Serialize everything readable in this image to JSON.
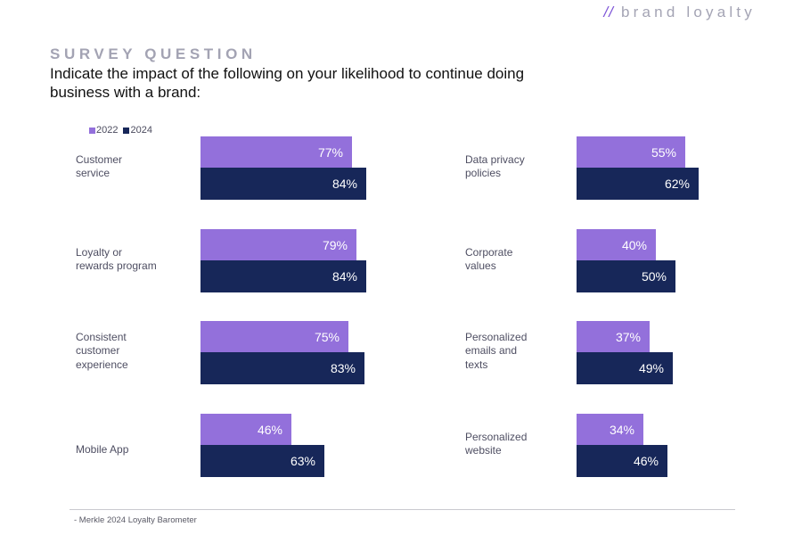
{
  "header": {
    "brand_slash": "//",
    "brand_text": "brand loyalty"
  },
  "kicker": "SURVEY QUESTION",
  "question": "Indicate the impact of the following on your likelihood to continue doing business with a brand:",
  "footer": {
    "source": "- Merkle 2024 Loyalty Barometer"
  },
  "colors": {
    "y2022": "#9370db",
    "y2024": "#172759"
  },
  "chart_data": {
    "type": "bar",
    "orientation": "horizontal",
    "title": "Indicate the impact of the following on your likelihood to continue doing business with a brand:",
    "xlabel": "",
    "ylabel": "",
    "xlim": [
      0,
      100
    ],
    "grid": false,
    "legend": {
      "position": "top-left",
      "entries": [
        "2022",
        "2024"
      ]
    },
    "panels": [
      {
        "categories": [
          "Customer service",
          "Loyalty or rewards program",
          "Consistent customer experience",
          "Mobile App"
        ],
        "labels": [
          [
            "Customer",
            "service"
          ],
          [
            "Loyalty or",
            "rewards program"
          ],
          [
            "Consistent",
            "customer",
            "experience"
          ],
          [
            "Mobile App"
          ]
        ],
        "series": [
          {
            "name": "2022",
            "values": [
              77,
              79,
              75,
              46
            ]
          },
          {
            "name": "2024",
            "values": [
              84,
              84,
              83,
              63
            ]
          }
        ]
      },
      {
        "categories": [
          "Data privacy policies",
          "Corporate values",
          "Personalized emails and texts",
          "Personalized website"
        ],
        "labels": [
          [
            "Data privacy",
            "policies"
          ],
          [
            "Corporate",
            "values"
          ],
          [
            "Personalized",
            "emails and",
            "texts"
          ],
          [
            "Personalized",
            "website"
          ]
        ],
        "series": [
          {
            "name": "2022",
            "values": [
              55,
              40,
              37,
              34
            ]
          },
          {
            "name": "2024",
            "values": [
              62,
              50,
              49,
              46
            ]
          }
        ]
      }
    ]
  }
}
